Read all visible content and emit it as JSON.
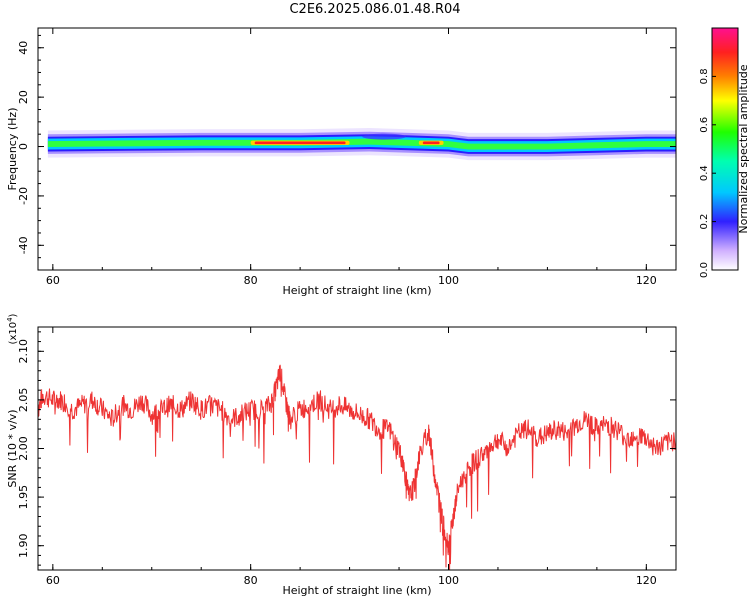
{
  "title": "C2E6.2025.086.01.48.R04",
  "chart_data": [
    {
      "type": "heatmap",
      "xlabel": "Height of straight line (km)",
      "ylabel": "Frequency (Hz)",
      "xlim": [
        58.5,
        123
      ],
      "ylim": [
        -50,
        48
      ],
      "xticks": [
        "60",
        "80",
        "100",
        "120"
      ],
      "xtick_values": [
        60,
        80,
        100,
        120
      ],
      "yticks": [
        "40",
        "20",
        "0",
        "-20",
        "-40"
      ],
      "ytick_values": [
        40,
        20,
        0,
        -20,
        -40
      ],
      "colorbar": {
        "label": "Normalized spectral amplitude",
        "ticks": [
          "0.0",
          "0.2",
          "0.4",
          "0.6",
          "0.8"
        ],
        "tick_values": [
          0.0,
          0.2,
          0.4,
          0.6,
          0.8
        ],
        "range": [
          0,
          1
        ],
        "colormap": "rainbow (white-violet-blue-cyan-green-yellow-red-magenta)"
      },
      "ridge_center_hz": [
        {
          "x": 59.5,
          "y": 1.0
        },
        {
          "x": 65,
          "y": 1.2
        },
        {
          "x": 75,
          "y": 1.5
        },
        {
          "x": 85,
          "y": 1.5
        },
        {
          "x": 92,
          "y": 2.0
        },
        {
          "x": 96,
          "y": 1.5
        },
        {
          "x": 100,
          "y": 1.0
        },
        {
          "x": 102,
          "y": 0.0
        },
        {
          "x": 110,
          "y": 0.0
        },
        {
          "x": 115,
          "y": 0.5
        },
        {
          "x": 120,
          "y": 1.0
        },
        {
          "x": 123,
          "y": 1.0
        }
      ],
      "peak_regions": [
        {
          "x_from": 80,
          "x_to": 90,
          "amplitude": 0.95
        },
        {
          "x_from": 97,
          "x_to": 99.5,
          "amplitude": 0.9
        }
      ]
    },
    {
      "type": "line",
      "xlabel": "Height of straight line (km)",
      "ylabel": "SNR (10 * v/v)",
      "y_scale_label": "(x10",
      "y_scale_exponent": "4",
      "y_scale_suffix": ")",
      "xlim": [
        58.5,
        123
      ],
      "ylim": [
        1.875,
        2.125
      ],
      "xticks": [
        "60",
        "80",
        "100",
        "120"
      ],
      "xtick_values": [
        60,
        80,
        100,
        120
      ],
      "yticks": [
        "2.10",
        "2.05",
        "2.00",
        "1.95",
        "1.90"
      ],
      "ytick_values": [
        2.1,
        2.05,
        2.0,
        1.95,
        1.9
      ],
      "series": [
        {
          "color": "#ee3333",
          "x": [
            58.5,
            59,
            60,
            61,
            62,
            63,
            64,
            65,
            66,
            67,
            68,
            69,
            70,
            71,
            72,
            73,
            74,
            75,
            76,
            77,
            78,
            79,
            80,
            81,
            82,
            82.5,
            83,
            83.5,
            84,
            85,
            86,
            87,
            88,
            89,
            90,
            91,
            92,
            93,
            94,
            95,
            95.5,
            96,
            96.5,
            97,
            98,
            98.5,
            99,
            99.5,
            100,
            100.5,
            101,
            102,
            103,
            104,
            105,
            106,
            107,
            108,
            109,
            110,
            111,
            112,
            113,
            114,
            115,
            116,
            117,
            118,
            119,
            120,
            121,
            122,
            123
          ],
          "values": [
            2.04,
            2.055,
            2.05,
            2.05,
            2.04,
            2.045,
            2.05,
            2.04,
            2.03,
            2.045,
            2.04,
            2.05,
            2.035,
            2.04,
            2.045,
            2.04,
            2.05,
            2.04,
            2.045,
            2.04,
            2.03,
            2.035,
            2.04,
            2.04,
            2.045,
            2.06,
            2.08,
            2.05,
            2.03,
            2.04,
            2.045,
            2.05,
            2.04,
            2.045,
            2.04,
            2.035,
            2.03,
            2.02,
            2.02,
            2.0,
            1.98,
            1.95,
            1.96,
            1.99,
            2.02,
            1.98,
            1.95,
            1.92,
            1.9,
            1.93,
            1.96,
            1.98,
            1.99,
            2.0,
            2.01,
            2.0,
            2.015,
            2.02,
            2.01,
            2.015,
            2.02,
            2.015,
            2.025,
            2.03,
            2.02,
            2.025,
            2.02,
            2.01,
            2.015,
            2.01,
            2.0,
            2.005,
            2.01
          ]
        }
      ]
    }
  ]
}
